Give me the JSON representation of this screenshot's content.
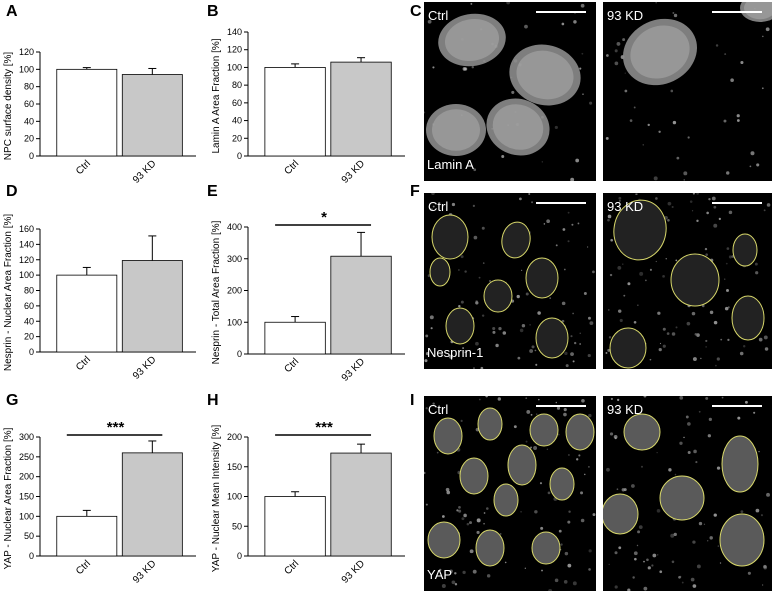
{
  "colors": {
    "ctrl_bar": "#ffffff",
    "kd_bar": "#c8c8c8",
    "axis": "#000000",
    "micrograph_bg": "#000000",
    "nucleus_outline": "#d7d76a"
  },
  "chart_data": [
    {
      "panel": "A",
      "type": "bar",
      "categories": [
        "Ctrl",
        "93 KD"
      ],
      "values": [
        100,
        94
      ],
      "errors": [
        2,
        7
      ],
      "ylabel": "NPC surface density [%]",
      "ylim": [
        0,
        120
      ],
      "yticks": [
        "0",
        "20",
        "40",
        "60",
        "80",
        "100",
        "120"
      ],
      "significance": ""
    },
    {
      "panel": "B",
      "type": "bar",
      "categories": [
        "Ctrl",
        "93 KD"
      ],
      "values": [
        100,
        106
      ],
      "errors": [
        4,
        5
      ],
      "ylabel": "Lamin A Area Fraction [%]",
      "ylim": [
        0,
        140
      ],
      "yticks": [
        "0",
        "20",
        "40",
        "60",
        "80",
        "100",
        "120",
        "140"
      ],
      "significance": ""
    },
    {
      "panel": "D",
      "type": "bar",
      "categories": [
        "Ctrl",
        "93 KD"
      ],
      "values": [
        100,
        119
      ],
      "errors": [
        10,
        32
      ],
      "ylabel": "Nesprin - Nuclear Area Fraction [%]",
      "ylim": [
        0,
        160
      ],
      "yticks": [
        "0",
        "20",
        "40",
        "60",
        "80",
        "100",
        "120",
        "140",
        "160"
      ],
      "significance": ""
    },
    {
      "panel": "E",
      "type": "bar",
      "categories": [
        "Ctrl",
        "93 KD"
      ],
      "values": [
        100,
        308
      ],
      "errors": [
        18,
        75
      ],
      "ylabel": "Nesprin - Total Area Fraction [%]",
      "ylim": [
        0,
        400
      ],
      "yticks": [
        "0",
        "100",
        "200",
        "300",
        "400"
      ],
      "significance": "*"
    },
    {
      "panel": "G",
      "type": "bar",
      "categories": [
        "Ctrl",
        "93 KD"
      ],
      "values": [
        100,
        260
      ],
      "errors": [
        15,
        30
      ],
      "ylabel": "YAP - Nuclear Area Fraction [%]",
      "ylim": [
        0,
        300
      ],
      "yticks": [
        "0",
        "50",
        "100",
        "150",
        "200",
        "250",
        "300"
      ],
      "significance": "***"
    },
    {
      "panel": "H",
      "type": "bar",
      "categories": [
        "Ctrl",
        "93 KD"
      ],
      "values": [
        100,
        173
      ],
      "errors": [
        8,
        15
      ],
      "ylabel": "YAP - Nuclear Mean Intensity [%]",
      "ylim": [
        0,
        200
      ],
      "yticks": [
        "0",
        "50",
        "100",
        "150",
        "200"
      ],
      "significance": "***"
    }
  ],
  "micrographs": [
    {
      "panel": "C",
      "left_label": "Ctrl",
      "right_label": "93 KD",
      "stain_label": "Lamin A",
      "outlined": false
    },
    {
      "panel": "F",
      "left_label": "Ctrl",
      "right_label": "93 KD",
      "stain_label": "Nesprin-1",
      "outlined": true
    },
    {
      "panel": "I",
      "left_label": "Ctrl",
      "right_label": "93 KD",
      "stain_label": "YAP",
      "outlined": true
    }
  ]
}
